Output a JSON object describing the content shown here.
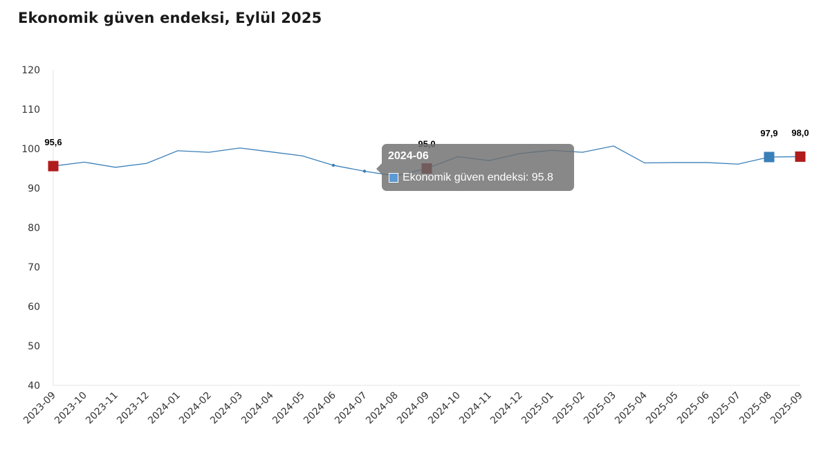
{
  "chart_data": {
    "type": "line",
    "title": "Ekonomik güven endeksi, Eylül 2025",
    "xlabel": "",
    "ylabel": "",
    "ylim": [
      40,
      120
    ],
    "yticks": [
      "40",
      "50",
      "60",
      "70",
      "80",
      "90",
      "100",
      "110",
      "120"
    ],
    "grid": false,
    "categories": [
      "2023-09",
      "2023-10",
      "2023-11",
      "2023-12",
      "2024-01",
      "2024-02",
      "2024-03",
      "2024-04",
      "2024-05",
      "2024-06",
      "2024-07",
      "2024-08",
      "2024-09",
      "2024-10",
      "2024-11",
      "2024-12",
      "2025-01",
      "2025-02",
      "2025-03",
      "2025-04",
      "2025-05",
      "2025-06",
      "2025-07",
      "2025-08",
      "2025-09"
    ],
    "series": [
      {
        "name": "Ekonomik güven endeksi",
        "color": "#3a7fb8",
        "values": [
          95.6,
          96.6,
          95.3,
          96.3,
          99.5,
          99.1,
          100.2,
          99.2,
          98.2,
          95.8,
          94.3,
          93.1,
          95.0,
          98.0,
          97.0,
          98.8,
          99.6,
          99.1,
          100.7,
          96.4,
          96.5,
          96.5,
          96.1,
          97.9,
          98.0
        ]
      }
    ],
    "highlighted_points": [
      {
        "category": "2023-09",
        "value": 95.6,
        "label": "95,6",
        "color": "#b01c1c"
      },
      {
        "category": "2024-09",
        "value": 95.0,
        "label": "95,0",
        "color": "#8b0f0f"
      },
      {
        "category": "2025-08",
        "value": 97.9,
        "label": "97,9",
        "color": "#3a7fb8"
      },
      {
        "category": "2025-09",
        "value": 98.0,
        "label": "98,0",
        "color": "#b01c1c"
      }
    ],
    "tooltip": {
      "title": "2024-06",
      "text": "Ekonomik güven endeksi: 95.8",
      "swatch_color": "#5b9bd5"
    }
  }
}
